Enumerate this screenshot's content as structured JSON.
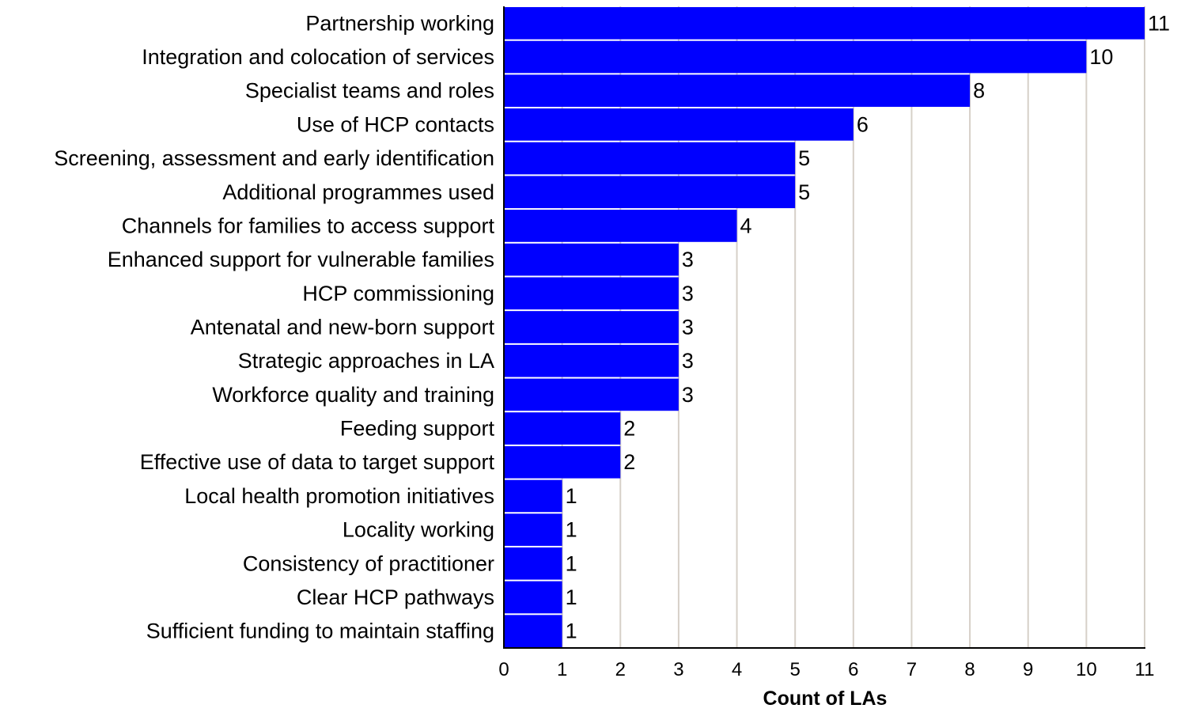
{
  "chart_data": {
    "type": "bar",
    "orientation": "horizontal",
    "categories": [
      "Partnership working",
      "Integration and colocation of services",
      "Specialist teams and roles",
      "Use of HCP contacts",
      "Screening, assessment and early identification",
      "Additional programmes used",
      "Channels for families to access support",
      "Enhanced support for vulnerable families",
      "HCP commissioning",
      "Antenatal and new-born support",
      "Strategic approaches in LA",
      "Workforce quality and training",
      "Feeding support",
      "Effective use of data to target support",
      "Local health promotion initiatives",
      "Locality working",
      "Consistency of practitioner",
      "Clear HCP pathways",
      "Sufficient funding to maintain staffing"
    ],
    "values": [
      11,
      10,
      8,
      6,
      5,
      5,
      4,
      3,
      3,
      3,
      3,
      3,
      2,
      2,
      1,
      1,
      1,
      1,
      1
    ],
    "xlabel": "Count of LAs",
    "ylabel": "",
    "xlim": [
      0,
      11
    ],
    "xticks": [
      "0",
      "1",
      "2",
      "3",
      "4",
      "5",
      "6",
      "7",
      "8",
      "9",
      "10",
      "11"
    ],
    "grid": "vertical",
    "data_labels": true,
    "bar_color": "#0000ff",
    "grid_color": "#d6d0c8"
  }
}
